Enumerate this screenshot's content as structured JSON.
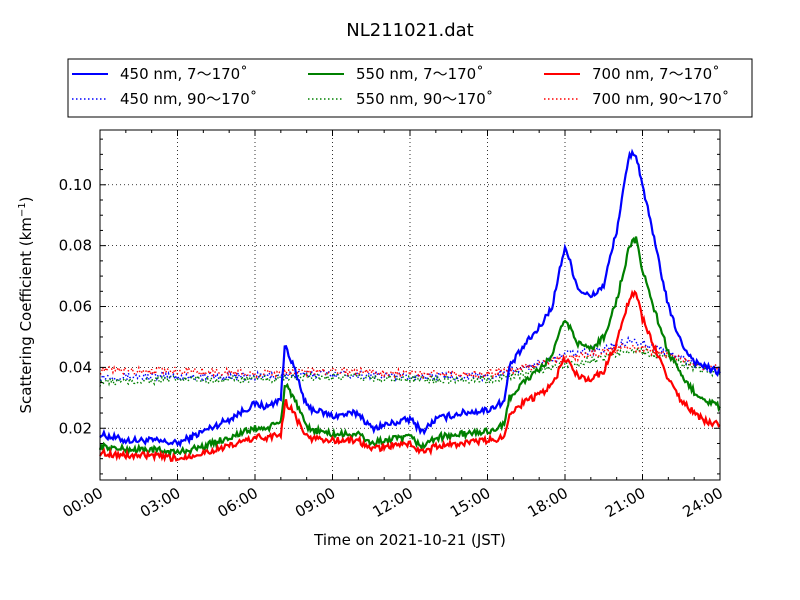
{
  "chart_data": {
    "type": "line",
    "title": "NL211021.dat",
    "xlabel": "Time on 2021-10-21 (JST)",
    "ylabel_main": "Scattering Coefficient (km",
    "ylabel_sup": "−1",
    "ylabel_close": ")",
    "xlim": [
      "00:00",
      "24:00"
    ],
    "ylim": [
      0.003,
      0.118
    ],
    "x_ticks": [
      "00:00",
      "03:00",
      "06:00",
      "09:00",
      "12:00",
      "15:00",
      "18:00",
      "21:00",
      "24:00"
    ],
    "y_ticks": [
      "0.02",
      "0.04",
      "0.06",
      "0.08",
      "0.10"
    ],
    "grid": true,
    "legend_position": "top, above plot",
    "series": [
      {
        "name": "450 nm, 7～170˚",
        "color": "#0000ff",
        "style": "solid",
        "x": [
          "00:00",
          "01:00",
          "02:00",
          "03:00",
          "04:00",
          "05:00",
          "06:00",
          "06:30",
          "07:00",
          "07:10",
          "07:30",
          "08:00",
          "09:00",
          "10:00",
          "10:30",
          "11:00",
          "12:00",
          "12:30",
          "13:00",
          "14:00",
          "15:00",
          "15:40",
          "15:50",
          "16:30",
          "17:00",
          "17:30",
          "18:00",
          "18:30",
          "19:00",
          "19:30",
          "20:00",
          "20:30",
          "20:45",
          "21:00",
          "21:30",
          "22:00",
          "22:30",
          "23:00",
          "23:30",
          "24:00"
        ],
        "y": [
          0.018,
          0.016,
          0.016,
          0.015,
          0.019,
          0.023,
          0.028,
          0.027,
          0.03,
          0.048,
          0.04,
          0.027,
          0.024,
          0.025,
          0.02,
          0.021,
          0.023,
          0.019,
          0.023,
          0.025,
          0.026,
          0.029,
          0.04,
          0.048,
          0.053,
          0.06,
          0.08,
          0.066,
          0.063,
          0.067,
          0.085,
          0.11,
          0.11,
          0.1,
          0.08,
          0.06,
          0.048,
          0.042,
          0.04,
          0.038
        ]
      },
      {
        "name": "450 nm, 90～170˚",
        "color": "#0000ff",
        "style": "dotted",
        "x": [
          "00:00",
          "03:00",
          "06:00",
          "09:00",
          "12:00",
          "15:00",
          "16:30",
          "18:00",
          "19:30",
          "20:30",
          "21:00",
          "22:00",
          "23:00",
          "24:00"
        ],
        "y": [
          0.037,
          0.037,
          0.037,
          0.038,
          0.037,
          0.037,
          0.04,
          0.044,
          0.046,
          0.049,
          0.048,
          0.045,
          0.041,
          0.039
        ]
      },
      {
        "name": "550 nm, 7～170˚",
        "color": "#008000",
        "style": "solid",
        "x": [
          "00:00",
          "01:00",
          "02:00",
          "03:00",
          "04:00",
          "05:00",
          "06:00",
          "06:30",
          "07:00",
          "07:10",
          "07:30",
          "08:00",
          "09:00",
          "10:00",
          "10:30",
          "11:00",
          "12:00",
          "12:30",
          "13:00",
          "14:00",
          "15:00",
          "15:40",
          "15:50",
          "16:30",
          "17:00",
          "17:30",
          "18:00",
          "18:30",
          "19:00",
          "19:30",
          "20:00",
          "20:30",
          "20:45",
          "21:00",
          "21:30",
          "22:00",
          "22:30",
          "23:00",
          "23:30",
          "24:00"
        ],
        "y": [
          0.014,
          0.013,
          0.013,
          0.012,
          0.014,
          0.017,
          0.02,
          0.02,
          0.022,
          0.035,
          0.03,
          0.02,
          0.018,
          0.018,
          0.015,
          0.016,
          0.017,
          0.014,
          0.017,
          0.018,
          0.019,
          0.021,
          0.03,
          0.036,
          0.039,
          0.044,
          0.056,
          0.048,
          0.046,
          0.05,
          0.062,
          0.08,
          0.082,
          0.072,
          0.058,
          0.045,
          0.037,
          0.032,
          0.029,
          0.027
        ]
      },
      {
        "name": "550 nm, 90～170˚",
        "color": "#008000",
        "style": "dotted",
        "x": [
          "00:00",
          "03:00",
          "06:00",
          "09:00",
          "12:00",
          "15:00",
          "16:30",
          "18:00",
          "19:30",
          "20:30",
          "21:00",
          "22:00",
          "23:00",
          "24:00"
        ],
        "y": [
          0.035,
          0.036,
          0.036,
          0.037,
          0.036,
          0.036,
          0.038,
          0.041,
          0.043,
          0.046,
          0.045,
          0.043,
          0.04,
          0.038
        ]
      },
      {
        "name": "700 nm, 7～170˚",
        "color": "#ff0000",
        "style": "solid",
        "x": [
          "00:00",
          "01:00",
          "02:00",
          "03:00",
          "04:00",
          "05:00",
          "06:00",
          "06:30",
          "07:00",
          "07:10",
          "07:30",
          "08:00",
          "09:00",
          "10:00",
          "10:30",
          "11:00",
          "12:00",
          "12:30",
          "13:00",
          "14:00",
          "15:00",
          "15:40",
          "15:50",
          "16:30",
          "17:00",
          "17:30",
          "18:00",
          "18:30",
          "19:00",
          "19:30",
          "20:00",
          "20:30",
          "20:45",
          "21:00",
          "21:30",
          "22:00",
          "22:30",
          "23:00",
          "23:30",
          "24:00"
        ],
        "y": [
          0.012,
          0.011,
          0.011,
          0.01,
          0.012,
          0.014,
          0.017,
          0.017,
          0.018,
          0.029,
          0.025,
          0.017,
          0.016,
          0.016,
          0.013,
          0.014,
          0.015,
          0.012,
          0.014,
          0.015,
          0.016,
          0.017,
          0.025,
          0.029,
          0.031,
          0.034,
          0.043,
          0.037,
          0.036,
          0.039,
          0.048,
          0.063,
          0.064,
          0.056,
          0.046,
          0.036,
          0.029,
          0.025,
          0.022,
          0.021
        ]
      },
      {
        "name": "700 nm, 90～170˚",
        "color": "#ff0000",
        "style": "dotted",
        "x": [
          "00:00",
          "03:00",
          "06:00",
          "09:00",
          "12:00",
          "15:00",
          "16:30",
          "18:00",
          "19:30",
          "20:30",
          "21:00",
          "22:00",
          "23:00",
          "24:00"
        ],
        "y": [
          0.039,
          0.039,
          0.038,
          0.039,
          0.038,
          0.038,
          0.04,
          0.043,
          0.045,
          0.047,
          0.046,
          0.044,
          0.041,
          0.04
        ]
      }
    ]
  }
}
